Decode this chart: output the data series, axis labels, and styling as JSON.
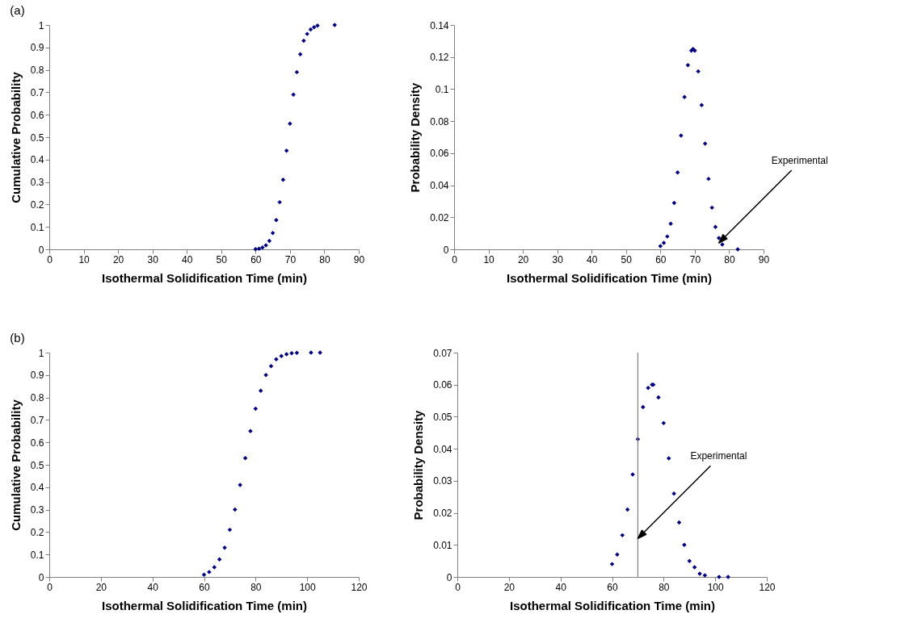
{
  "chart_data": [
    {
      "type": "scatter",
      "annotations": [
        "(a)"
      ],
      "xlabel": "Isothermal Solidification Time (min)",
      "ylabel": "Cumulative Probability",
      "xlim": [
        0,
        90
      ],
      "xticks": [
        0,
        10,
        20,
        30,
        40,
        50,
        60,
        70,
        80,
        90
      ],
      "ylim": [
        0,
        1
      ],
      "yticks": [
        0,
        0.1,
        0.2,
        0.3,
        0.4,
        0.5,
        0.6,
        0.7,
        0.8,
        0.9,
        1
      ],
      "grid": false,
      "marker": "diamond",
      "series": [
        {
          "color": "#000080",
          "x": [
            60,
            61,
            62,
            63,
            64,
            65,
            66,
            67,
            68,
            69,
            70,
            71,
            72,
            73,
            74,
            75,
            76,
            77,
            78,
            83
          ],
          "values": [
            0.001,
            0.003,
            0.008,
            0.018,
            0.038,
            0.073,
            0.13,
            0.21,
            0.31,
            0.44,
            0.56,
            0.69,
            0.79,
            0.87,
            0.93,
            0.96,
            0.98,
            0.99,
            0.997,
            1
          ]
        }
      ]
    },
    {
      "type": "scatter",
      "annotations": [
        {
          "text": "Experimental",
          "x": 77,
          "y": 0.004
        }
      ],
      "xlabel": "Isothermal Solidification Time (min)",
      "ylabel": "Probability Density",
      "xlim": [
        0,
        90
      ],
      "xticks": [
        0,
        10,
        20,
        30,
        40,
        50,
        60,
        70,
        80,
        90
      ],
      "ylim": [
        0,
        0.14
      ],
      "yticks": [
        0,
        0.02,
        0.04,
        0.06,
        0.08,
        0.1,
        0.12,
        0.14
      ],
      "grid": false,
      "marker": "diamond",
      "series": [
        {
          "color": "#000080",
          "x": [
            60,
            61,
            62,
            63,
            64,
            65,
            66,
            67,
            68,
            69,
            69.5,
            70,
            71,
            72,
            73,
            74,
            75,
            76,
            77,
            78,
            82.5
          ],
          "values": [
            0.002,
            0.004,
            0.008,
            0.016,
            0.029,
            0.048,
            0.071,
            0.095,
            0.115,
            0.124,
            0.125,
            0.124,
            0.111,
            0.09,
            0.066,
            0.044,
            0.026,
            0.014,
            0.007,
            0.003,
            0
          ]
        }
      ]
    },
    {
      "type": "scatter",
      "annotations": [
        "(b)"
      ],
      "xlabel": "Isothermal Solidification Time (min)",
      "ylabel": "Cumulative Probability",
      "xlim": [
        0,
        120
      ],
      "xticks": [
        0,
        20,
        40,
        60,
        80,
        100,
        120
      ],
      "ylim": [
        0,
        1
      ],
      "yticks": [
        0,
        0.1,
        0.2,
        0.3,
        0.4,
        0.5,
        0.6,
        0.7,
        0.8,
        0.9,
        1
      ],
      "grid": false,
      "marker": "diamond",
      "series": [
        {
          "color": "#000080",
          "x": [
            60,
            62,
            64,
            66,
            68,
            70,
            72,
            74,
            76,
            78,
            80,
            82,
            84,
            86,
            88,
            90,
            92,
            94,
            96,
            101.5,
            105
          ],
          "values": [
            0.01,
            0.022,
            0.043,
            0.078,
            0.13,
            0.21,
            0.3,
            0.41,
            0.53,
            0.65,
            0.75,
            0.83,
            0.9,
            0.94,
            0.97,
            0.985,
            0.993,
            0.997,
            0.999,
            1,
            1
          ]
        }
      ]
    },
    {
      "type": "scatter",
      "annotations": [
        {
          "text": "Experimental",
          "x": 70,
          "y": 0.012
        }
      ],
      "xlabel": "Isothermal Solidification Time (min)",
      "ylabel": "Probability Density",
      "xlim": [
        0,
        120
      ],
      "xticks": [
        0,
        20,
        40,
        60,
        80,
        100,
        120
      ],
      "ylim": [
        0,
        0.07
      ],
      "yticks": [
        0,
        0.01,
        0.02,
        0.03,
        0.04,
        0.05,
        0.06,
        0.07
      ],
      "grid": false,
      "marker": "diamond",
      "ref_lines": [
        {
          "axis": "x",
          "value": 70,
          "color": "#808080"
        }
      ],
      "series": [
        {
          "color": "#000080",
          "x": [
            60,
            62,
            64,
            66,
            68,
            70,
            72,
            74,
            75.5,
            76,
            78,
            80,
            82,
            84,
            86,
            88,
            90,
            92,
            94,
            96,
            101.5,
            105
          ],
          "values": [
            0.004,
            0.007,
            0.013,
            0.021,
            0.032,
            0.043,
            0.053,
            0.059,
            0.06,
            0.06,
            0.056,
            0.048,
            0.037,
            0.026,
            0.017,
            0.01,
            0.005,
            0.003,
            0.001,
            0.0005,
            0,
            0
          ]
        }
      ]
    }
  ]
}
